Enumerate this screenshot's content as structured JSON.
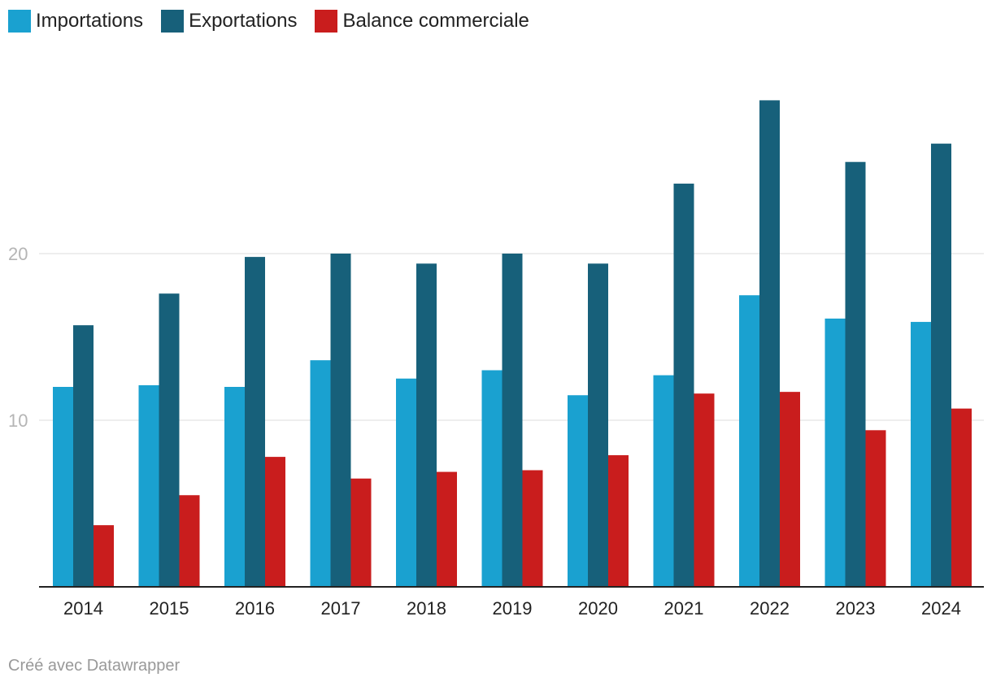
{
  "legend": [
    {
      "label": "Importations",
      "color": "#1aa1d0"
    },
    {
      "label": "Exportations",
      "color": "#17607a"
    },
    {
      "label": "Balance commerciale",
      "color": "#c91d1d"
    }
  ],
  "footer": {
    "credit": "Créé avec Datawrapper"
  },
  "chart_data": {
    "type": "bar",
    "title": "",
    "xlabel": "",
    "ylabel": "",
    "categories": [
      "2014",
      "2015",
      "2016",
      "2017",
      "2018",
      "2019",
      "2020",
      "2021",
      "2022",
      "2023",
      "2024"
    ],
    "series": [
      {
        "name": "Importations",
        "color": "#1aa1d0",
        "values": [
          12.0,
          12.1,
          12.0,
          13.6,
          12.5,
          13.0,
          11.5,
          12.7,
          17.5,
          16.1,
          15.9
        ]
      },
      {
        "name": "Exportations",
        "color": "#17607a",
        "values": [
          15.7,
          17.6,
          19.8,
          20.0,
          19.4,
          20.0,
          19.4,
          24.2,
          29.2,
          25.5,
          26.6
        ]
      },
      {
        "name": "Balance commerciale",
        "color": "#c91d1d",
        "values": [
          3.7,
          5.5,
          7.8,
          6.5,
          6.9,
          7.0,
          7.9,
          11.6,
          11.7,
          9.4,
          10.7
        ]
      }
    ],
    "yticks": [
      "10",
      "20"
    ],
    "ylim": [
      0,
      30
    ],
    "grid": true,
    "legend": "top-left"
  }
}
